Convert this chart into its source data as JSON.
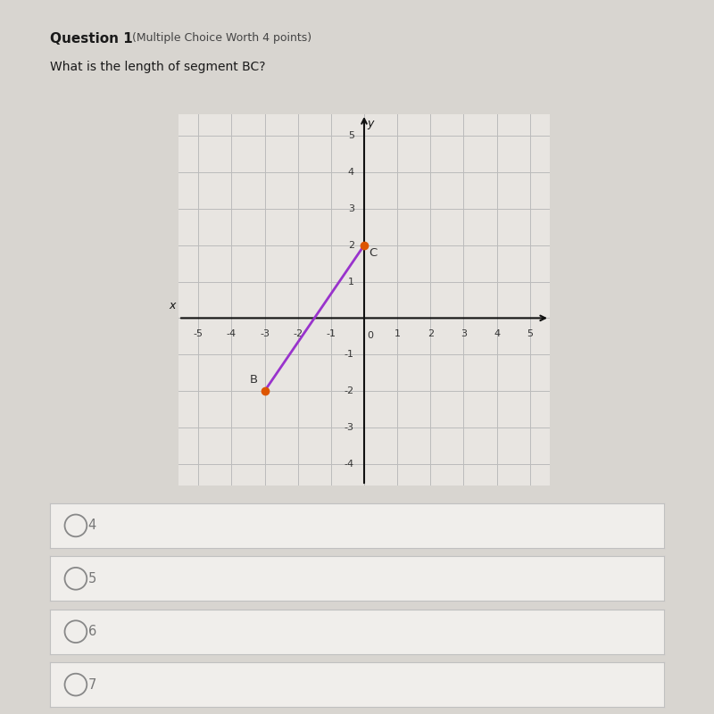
{
  "title_bold": "Question 1",
  "title_normal": "(Multiple Choice Worth 4 points)",
  "subtitle": "What is the length of segment BC?",
  "bg_color": "#d8d5d0",
  "panel_color": "#e8e5e1",
  "grid_color": "#bbbbbb",
  "axis_color": "#111111",
  "point_B": [
    -3,
    -2
  ],
  "point_C": [
    0,
    2
  ],
  "segment_color": "#9933cc",
  "point_color": "#dd5500",
  "point_label_B": "B",
  "point_label_C": "C",
  "xlim": [
    -5.6,
    5.6
  ],
  "ylim": [
    -4.6,
    5.6
  ],
  "xticks": [
    -5,
    -4,
    -3,
    -2,
    -1,
    0,
    1,
    2,
    3,
    4,
    5
  ],
  "yticks": [
    -4,
    -3,
    -2,
    -1,
    0,
    1,
    2,
    3,
    4,
    5
  ],
  "choices": [
    "4",
    "5",
    "6",
    "7"
  ],
  "choice_bg": "#f0eeeb",
  "choice_color": "#777777",
  "radio_color": "#888888",
  "xlabel": "x",
  "ylabel": "y",
  "tick_fontsize": 8,
  "label_fontsize": 9
}
